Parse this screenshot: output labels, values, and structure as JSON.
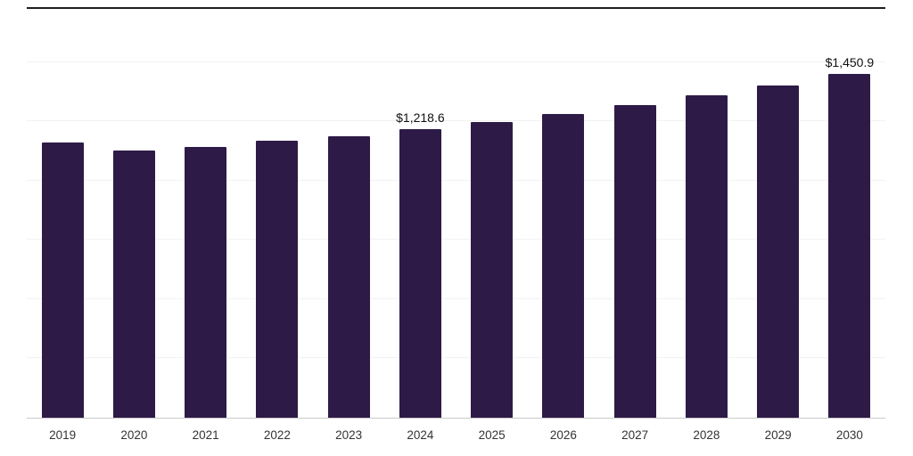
{
  "chart_data": {
    "type": "bar",
    "title": "",
    "xlabel": "",
    "ylabel": "",
    "categories": [
      "2019",
      "2020",
      "2021",
      "2022",
      "2023",
      "2024",
      "2025",
      "2026",
      "2027",
      "2028",
      "2029",
      "2030"
    ],
    "values": [
      1163,
      1129,
      1144,
      1167,
      1189,
      1218.6,
      1249,
      1283,
      1319,
      1360,
      1402,
      1450.9
    ],
    "value_labels": {
      "2024": "$1,218.6",
      "2030": "$1,450.9"
    },
    "ylim": [
      0,
      1725
    ],
    "gridline_step": 250,
    "grid": true,
    "legend": false,
    "bar_color": "#2e1a47",
    "axis_line_color": "#c9c9c9",
    "gridline_color": "#f2f2f2",
    "top_border_color": "#1f1f1f",
    "tick_label_color": "#333333",
    "value_label_color": "#111111"
  }
}
